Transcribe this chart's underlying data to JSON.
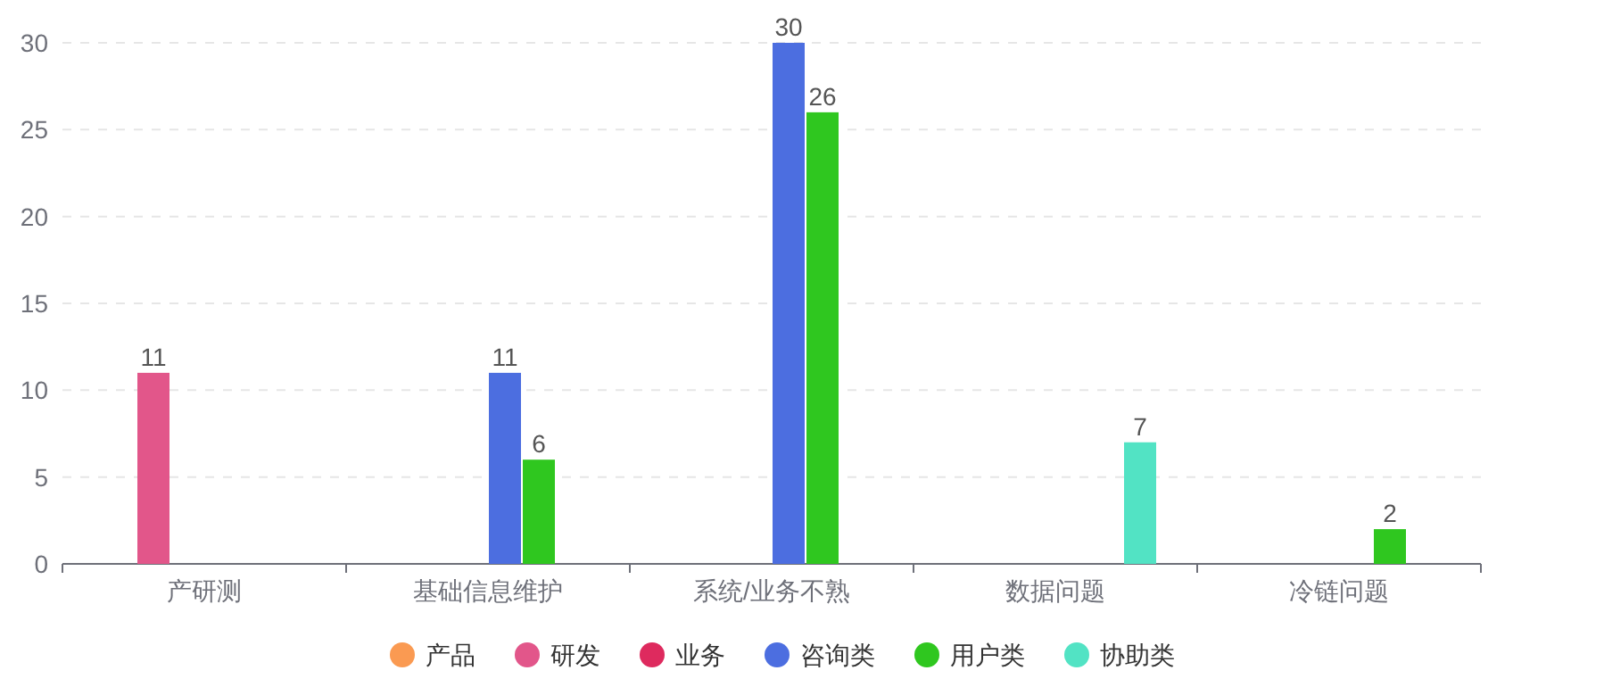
{
  "chart_data": {
    "type": "bar",
    "categories": [
      "产研测",
      "基础信息维护",
      "系统/业务不熟",
      "数据问题",
      "冷链问题"
    ],
    "series": [
      {
        "name": "产品",
        "color": "#fa9a52",
        "values": [
          null,
          null,
          null,
          null,
          null
        ]
      },
      {
        "name": "研发",
        "color": "#e2568a",
        "values": [
          11,
          null,
          null,
          null,
          null
        ]
      },
      {
        "name": "业务",
        "color": "#de2a5e",
        "values": [
          null,
          null,
          null,
          null,
          null
        ]
      },
      {
        "name": "咨询类",
        "color": "#4c6ee0",
        "values": [
          null,
          11,
          30,
          null,
          null
        ]
      },
      {
        "name": "用户类",
        "color": "#2fc71f",
        "values": [
          null,
          6,
          26,
          null,
          2
        ]
      },
      {
        "name": "协助类",
        "color": "#52e3c4",
        "values": [
          null,
          null,
          null,
          7,
          null
        ]
      }
    ],
    "ylim": [
      0,
      30
    ],
    "yticks": [
      0,
      5,
      10,
      15,
      20,
      25,
      30
    ],
    "grid": "y",
    "legend": "bottom",
    "data_labels": true
  }
}
